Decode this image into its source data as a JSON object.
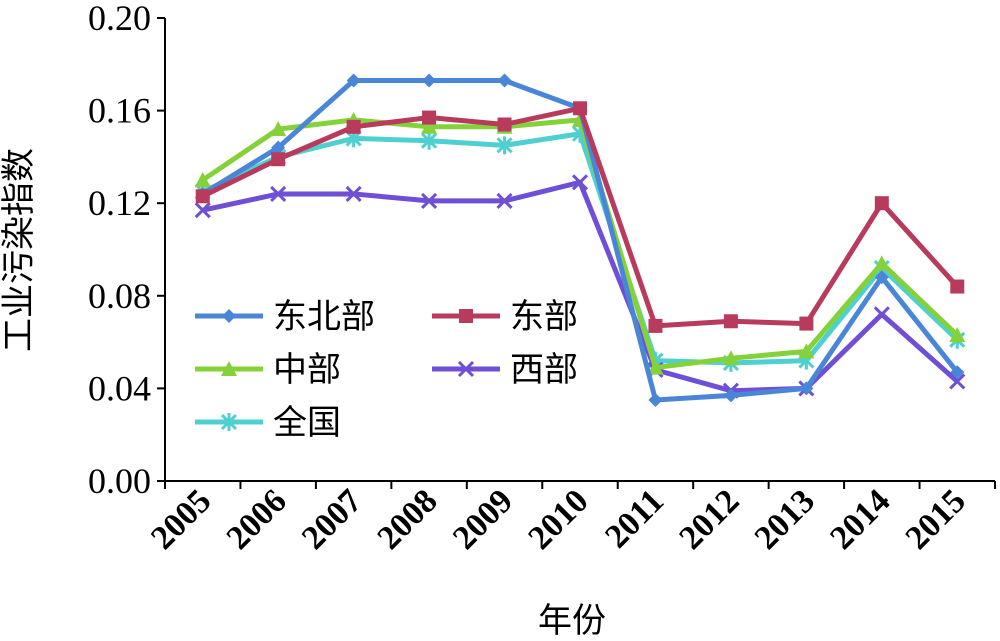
{
  "chart_data": {
    "type": "line",
    "title": "",
    "xlabel": "年份",
    "ylabel": "工业污染指数",
    "ylim": [
      0,
      0.2
    ],
    "yticks": [
      "0.00",
      "0.04",
      "0.08",
      "0.12",
      "0.16",
      "0.20"
    ],
    "categories": [
      "2005",
      "2006",
      "2007",
      "2008",
      "2009",
      "2010",
      "2011",
      "2012",
      "2013",
      "2014",
      "2015"
    ],
    "grid": false,
    "legend_position": "center-left",
    "series": [
      {
        "name": "东北部",
        "color": "#4a86d8",
        "marker": "diamond",
        "values": [
          0.124,
          0.144,
          0.173,
          0.173,
          0.173,
          0.161,
          0.035,
          0.037,
          0.04,
          0.088,
          0.047
        ]
      },
      {
        "name": "东部",
        "color": "#b83a5c",
        "marker": "square",
        "values": [
          0.123,
          0.139,
          0.153,
          0.157,
          0.154,
          0.161,
          0.067,
          0.069,
          0.068,
          0.12,
          0.084
        ]
      },
      {
        "name": "中部",
        "color": "#84d13a",
        "marker": "triangle",
        "values": [
          0.13,
          0.152,
          0.156,
          0.153,
          0.153,
          0.156,
          0.049,
          0.053,
          0.056,
          0.094,
          0.063
        ]
      },
      {
        "name": "西部",
        "color": "#6f4fd6",
        "marker": "x",
        "values": [
          0.117,
          0.124,
          0.124,
          0.121,
          0.121,
          0.129,
          0.048,
          0.039,
          0.04,
          0.072,
          0.043
        ]
      },
      {
        "name": "全国",
        "color": "#4fd0d0",
        "marker": "star",
        "values": [
          0.125,
          0.14,
          0.148,
          0.147,
          0.145,
          0.15,
          0.052,
          0.051,
          0.052,
          0.092,
          0.061
        ]
      }
    ]
  }
}
